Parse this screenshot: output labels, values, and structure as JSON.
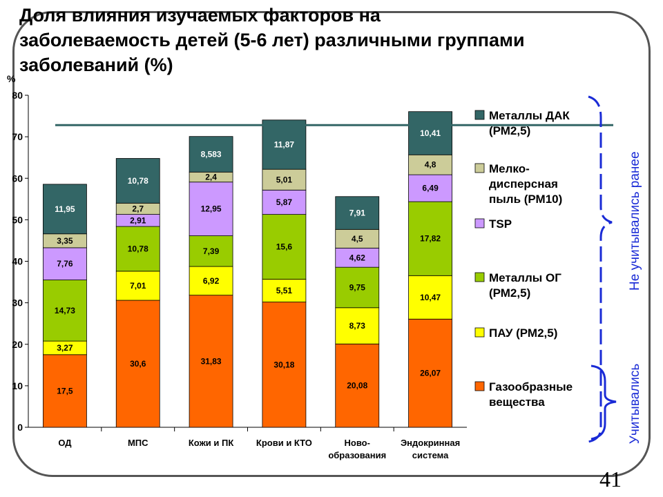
{
  "title_lines": [
    "Доля влияния изучаемых факторов на",
    "заболеваемость детей (5-6 лет) различными группами",
    "заболеваний (%)"
  ],
  "page_number": "41",
  "brackets": {
    "not_counted": "Не учитывались ранее",
    "counted": "Учитывались"
  },
  "chart_data": {
    "type": "bar",
    "stacked": true,
    "y_unit_label": "%",
    "ylim": [
      0,
      80
    ],
    "yticks": [
      "0",
      "10",
      "20",
      "30",
      "40",
      "50",
      "60",
      "70",
      "80"
    ],
    "grid": false,
    "legend_position": "right",
    "reference_line_y": 72.8,
    "categories": [
      [
        "ОД"
      ],
      [
        "МПС"
      ],
      [
        "Кожи и ПК"
      ],
      [
        "Крови и КТО"
      ],
      [
        "Ново-",
        "образования"
      ],
      [
        "Эндокринная",
        "система"
      ]
    ],
    "series": [
      {
        "name": "Газообразные вещества",
        "legend_lines": [
          "Газообразные",
          "вещества"
        ],
        "color": "#ff6600",
        "values": [
          17.5,
          30.6,
          31.83,
          30.18,
          20.08,
          26.07
        ],
        "labels": [
          "17,5",
          "30,6",
          "31,83",
          "30,18",
          "20,08",
          "26,07"
        ]
      },
      {
        "name": "ПАУ (РМ2,5)",
        "legend_lines": [
          "ПАУ    (РМ2,5)"
        ],
        "color": "#ffff00",
        "values": [
          3.27,
          7.01,
          6.92,
          5.51,
          8.73,
          10.47
        ],
        "labels": [
          "3,27",
          "7,01",
          "6,92",
          "5,51",
          "8,73",
          "10,47"
        ]
      },
      {
        "name": "Металлы ОГ (РМ2,5)",
        "legend_lines": [
          "Металлы ОГ",
          "(РМ2,5)"
        ],
        "color": "#99cc00",
        "values": [
          14.73,
          10.78,
          7.39,
          15.6,
          9.75,
          17.82
        ],
        "labels": [
          "14,73",
          "10,78",
          "7,39",
          "15,6",
          "9,75",
          "17,82"
        ]
      },
      {
        "name": "TSP",
        "legend_lines": [
          "TSP"
        ],
        "color": "#cc99ff",
        "values": [
          7.76,
          2.91,
          12.95,
          5.87,
          4.62,
          6.49
        ],
        "labels": [
          "7,76",
          "2,91",
          "12,95",
          "5,87",
          "4,62",
          "6,49"
        ]
      },
      {
        "name": "Мелко-дисперсная пыль (РМ10)",
        "legend_lines": [
          "Мелко-",
          "дисперсная",
          "пыль (РМ10)"
        ],
        "color": "#cccc99",
        "values": [
          3.35,
          2.7,
          2.4,
          5.01,
          4.5,
          4.8
        ],
        "labels": [
          "3,35",
          "2,7",
          "2,4",
          "5,01",
          "4,5",
          "4,8"
        ]
      },
      {
        "name": "Металлы ДАК (РМ2,5)",
        "legend_lines": [
          "Металлы ДАК",
          "(РМ2,5)"
        ],
        "color": "#336666",
        "values": [
          11.95,
          10.78,
          8.583,
          11.87,
          7.91,
          10.41
        ],
        "labels": [
          "11,95",
          "10,78",
          "8,583",
          "11,87",
          "7,91",
          "10,41"
        ]
      }
    ],
    "colors": {
      "reference_line": "#336666",
      "bracket": "#1a2bd6",
      "axis": "#000000"
    }
  }
}
